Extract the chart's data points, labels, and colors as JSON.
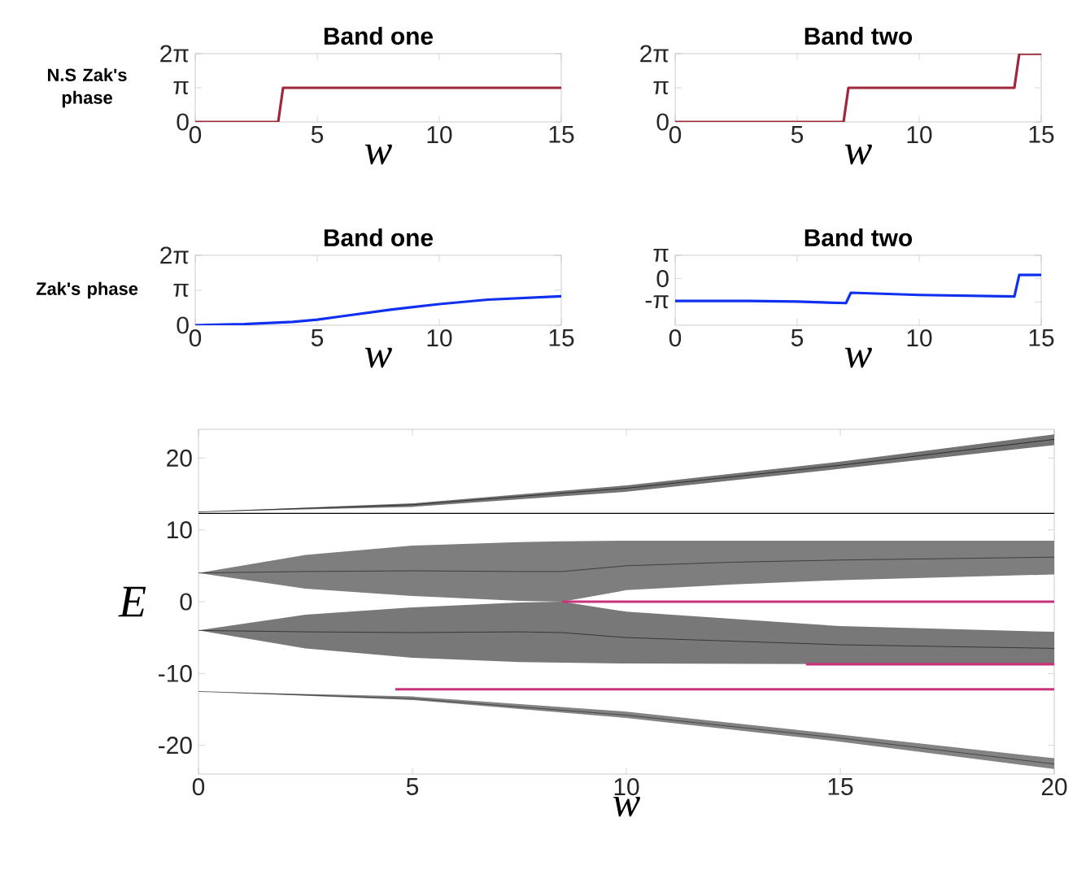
{
  "chart_data": [
    {
      "type": "line",
      "title": "Band one",
      "ylabel": "N.S Zak's phase",
      "xlabel": "w",
      "xlim": [
        0,
        15
      ],
      "xticks": [
        0,
        5,
        10,
        15
      ],
      "ylim": [
        0,
        6.2832
      ],
      "yticks": [
        {
          "value": 0,
          "label": "0"
        },
        {
          "value": 3.1416,
          "label": "π"
        },
        {
          "value": 6.2832,
          "label": "2π"
        }
      ],
      "series": [
        {
          "color": "#a0283c",
          "x": [
            0,
            3.4,
            3.6,
            15
          ],
          "values": [
            0,
            0,
            3.14,
            3.14
          ]
        }
      ]
    },
    {
      "type": "line",
      "title": "Band two",
      "xlabel": "w",
      "xlim": [
        0,
        15
      ],
      "xticks": [
        0,
        5,
        10,
        15
      ],
      "ylim": [
        0,
        6.2832
      ],
      "yticks": [
        {
          "value": 0,
          "label": "0"
        },
        {
          "value": 3.1416,
          "label": "π"
        },
        {
          "value": 6.2832,
          "label": "2π"
        }
      ],
      "series": [
        {
          "color": "#a0283c",
          "x": [
            0,
            6.9,
            7.1,
            13.9,
            14.1,
            15
          ],
          "values": [
            0,
            0,
            3.14,
            3.14,
            6.28,
            6.28
          ]
        }
      ]
    },
    {
      "type": "line",
      "title": "Band one",
      "ylabel": "Zak's phase",
      "xlabel": "w",
      "xlim": [
        0,
        15
      ],
      "xticks": [
        0,
        5,
        10,
        15
      ],
      "ylim": [
        0,
        6.2832
      ],
      "yticks": [
        {
          "value": 0,
          "label": "0"
        },
        {
          "value": 3.1416,
          "label": "π"
        },
        {
          "value": 6.2832,
          "label": "2π"
        }
      ],
      "series": [
        {
          "color": "#1030f0",
          "x": [
            0,
            2,
            4,
            5,
            6,
            8,
            10,
            12,
            15
          ],
          "values": [
            0,
            0.1,
            0.3,
            0.5,
            0.8,
            1.4,
            1.9,
            2.3,
            2.6
          ]
        }
      ]
    },
    {
      "type": "line",
      "title": "Band two",
      "xlabel": "w",
      "xlim": [
        0,
        15
      ],
      "xticks": [
        0,
        5,
        10,
        15
      ],
      "ylim": [
        -6.2832,
        3.1416
      ],
      "yticks": [
        {
          "value": -3.1416,
          "label": "-π"
        },
        {
          "value": 0,
          "label": "0"
        },
        {
          "value": 3.1416,
          "label": "π"
        }
      ],
      "series": [
        {
          "color": "#1030f0",
          "x": [
            0,
            3,
            5,
            7,
            7.2,
            10,
            13.9,
            14.1,
            15
          ],
          "values": [
            -3.0,
            -3.0,
            -3.1,
            -3.3,
            -1.9,
            -2.2,
            -2.4,
            0.5,
            0.5
          ]
        }
      ]
    },
    {
      "type": "line",
      "ylabel": "E",
      "xlabel": "w",
      "xlim": [
        0,
        20
      ],
      "xticks": [
        0,
        5,
        10,
        15,
        20
      ],
      "ylim": [
        -24,
        24
      ],
      "yticks": [
        -20,
        -10,
        0,
        10,
        20
      ],
      "ref_lines": [
        {
          "axis": "y",
          "value": 12.3,
          "color": "#000000"
        }
      ],
      "series": [
        {
          "color": "#000000",
          "x": [
            0,
            5,
            10,
            15,
            20
          ],
          "values": [
            12.5,
            13.5,
            15.8,
            19.0,
            22.6
          ],
          "lower": [
            12.5,
            13.2,
            15.3,
            18.5,
            21.8
          ],
          "upper": [
            12.5,
            13.7,
            16.2,
            19.5,
            23.3
          ]
        },
        {
          "color": "#141414",
          "x": [
            0,
            2.5,
            5,
            7.5,
            8.5,
            10,
            12.5,
            15,
            20
          ],
          "values": [
            4,
            4.2,
            4.3,
            4.2,
            4.2,
            5.0,
            5.5,
            5.8,
            6.2
          ],
          "lower": [
            4,
            1.8,
            0.8,
            0.1,
            0,
            1.6,
            2.4,
            3.0,
            3.8
          ],
          "upper": [
            4,
            6.5,
            7.8,
            8.3,
            8.4,
            8.5,
            8.5,
            8.5,
            8.5
          ]
        },
        {
          "color": "#0a0a0a",
          "x": [
            0,
            2.5,
            5,
            7.5,
            8.5,
            10,
            15,
            20
          ],
          "values": [
            -4,
            -4.2,
            -4.3,
            -4.2,
            -4.3,
            -5.0,
            -6.0,
            -6.5
          ],
          "lower": [
            -4,
            -6.5,
            -7.8,
            -8.4,
            -8.5,
            -8.6,
            -8.7,
            -8.7
          ],
          "upper": [
            -4,
            -1.8,
            -0.8,
            -0.1,
            0,
            -1.4,
            -3.4,
            -4.2
          ]
        },
        {
          "color": "#1e1e1e",
          "x": [
            0,
            5,
            10,
            15,
            20
          ],
          "values": [
            -12.5,
            -13.5,
            -15.8,
            -19.0,
            -22.6
          ],
          "lower": [
            -12.5,
            -13.7,
            -16.2,
            -19.5,
            -23.3
          ],
          "upper": [
            -12.5,
            -13.2,
            -15.3,
            -18.5,
            -21.8
          ]
        },
        {
          "color": "#c8327a",
          "x": [
            8.5,
            20
          ],
          "values": [
            0,
            0
          ]
        },
        {
          "color": "#c8327a",
          "x": [
            14.2,
            20
          ],
          "values": [
            -8.7,
            -8.7
          ]
        },
        {
          "color": "#c8327a",
          "x": [
            4.6,
            20
          ],
          "values": [
            -12.2,
            -12.2
          ]
        }
      ]
    }
  ]
}
